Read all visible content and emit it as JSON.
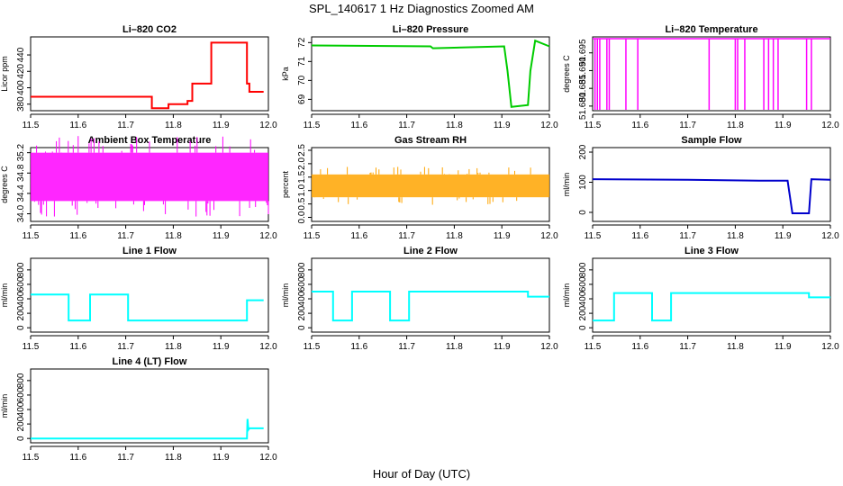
{
  "figure": {
    "title": "SPL_140617  1 Hz Diagnostics Zoomed AM",
    "xlabel": "Hour of Day (UTC)"
  },
  "chart_data": [
    {
      "type": "line",
      "title": "Li–820 CO2",
      "ylabel": "Licor ppm",
      "color": "#ff0000",
      "xlim": [
        11.5,
        12.0
      ],
      "ylim": [
        372,
        462
      ],
      "yticks": [
        380,
        400,
        420,
        440
      ],
      "xticks": [
        11.5,
        11.6,
        11.7,
        11.8,
        11.9,
        12.0
      ],
      "x": [
        11.5,
        11.755,
        11.755,
        11.79,
        11.79,
        11.83,
        11.83,
        11.84,
        11.84,
        11.88,
        11.88,
        11.955,
        11.955,
        11.96,
        11.96,
        11.99
      ],
      "y": [
        389,
        389,
        375,
        375,
        380,
        380,
        384,
        384,
        405,
        405,
        455,
        455,
        405,
        405,
        395,
        395
      ]
    },
    {
      "type": "line",
      "title": "Li–820 Pressure",
      "ylabel": "kPa",
      "color": "#00cc00",
      "xlim": [
        11.5,
        12.0
      ],
      "ylim": [
        68.4,
        72.3
      ],
      "yticks": [
        69,
        70,
        71,
        72
      ],
      "xticks": [
        11.5,
        11.6,
        11.7,
        11.8,
        11.9,
        12.0
      ],
      "x": [
        11.5,
        11.75,
        11.755,
        11.905,
        11.912,
        11.92,
        11.955,
        11.96,
        11.97,
        12.0
      ],
      "y": [
        71.85,
        71.8,
        71.7,
        71.8,
        70.5,
        68.6,
        68.7,
        70.5,
        72.1,
        71.8
      ]
    },
    {
      "type": "line",
      "title": "Li–820 Temperature",
      "ylabel": "degrees C",
      "color": "#ff00ff",
      "xlim": [
        11.5,
        12.0
      ],
      "ylim": [
        51.6787,
        51.6995
      ],
      "yticks": [
        51.68,
        51.685,
        51.69,
        51.695
      ],
      "xticks": [
        11.5,
        11.6,
        11.7,
        11.8,
        11.9,
        12.0
      ],
      "baseline": 51.699,
      "dips": [
        11.505,
        11.51,
        11.515,
        11.53,
        11.535,
        11.57,
        11.595,
        11.745,
        11.8,
        11.805,
        11.82,
        11.86,
        11.87,
        11.88,
        11.89,
        11.95,
        11.96
      ]
    },
    {
      "type": "line",
      "title": "Ambient Box Temperature",
      "ylabel": "degrees C",
      "color": "#ff00ff",
      "xlim": [
        11.5,
        12.0
      ],
      "ylim": [
        33.85,
        35.3
      ],
      "yticks": [
        34.0,
        34.4,
        34.8,
        35.2
      ],
      "xticks": [
        11.5,
        11.6,
        11.7,
        11.8,
        11.9,
        12.0
      ],
      "band": [
        34.25,
        35.2
      ]
    },
    {
      "type": "scatter",
      "title": "Gas Stream RH",
      "ylabel": "percent",
      "color": "#ffa500",
      "xlim": [
        11.5,
        12.0
      ],
      "ylim": [
        -0.15,
        2.6
      ],
      "yticks": [
        0.0,
        0.5,
        1.0,
        1.5,
        2.0,
        2.5
      ],
      "xticks": [
        11.5,
        11.6,
        11.7,
        11.8,
        11.9,
        12.0
      ],
      "band": [
        0.75,
        1.6
      ]
    },
    {
      "type": "line",
      "title": "Sample Flow",
      "ylabel": "ml/min",
      "color": "#0000cc",
      "xlim": [
        11.5,
        12.0
      ],
      "ylim": [
        -30,
        215
      ],
      "yticks": [
        0,
        100,
        200
      ],
      "xticks": [
        11.5,
        11.6,
        11.7,
        11.8,
        11.9,
        12.0
      ],
      "x": [
        11.5,
        11.7,
        11.85,
        11.91,
        11.92,
        11.955,
        11.96,
        12.0
      ],
      "y": [
        110,
        108,
        105,
        105,
        -3,
        -3,
        110,
        108
      ]
    },
    {
      "type": "line",
      "title": "Line 1 Flow",
      "ylabel": "ml/min",
      "color": "#00ffff",
      "xlim": [
        11.5,
        12.0
      ],
      "ylim": [
        -60,
        960
      ],
      "yticks": [
        0,
        200,
        400,
        600,
        800
      ],
      "xticks": [
        11.5,
        11.6,
        11.7,
        11.8,
        11.9,
        12.0
      ],
      "x": [
        11.5,
        11.58,
        11.58,
        11.625,
        11.625,
        11.705,
        11.705,
        11.955,
        11.955,
        11.99
      ],
      "y": [
        460,
        460,
        100,
        100,
        460,
        460,
        100,
        100,
        380,
        380
      ]
    },
    {
      "type": "line",
      "title": "Line 2 Flow",
      "ylabel": "ml/min",
      "color": "#00ffff",
      "xlim": [
        11.5,
        12.0
      ],
      "ylim": [
        -60,
        960
      ],
      "yticks": [
        0,
        200,
        400,
        600,
        800
      ],
      "xticks": [
        11.5,
        11.6,
        11.7,
        11.8,
        11.9,
        12.0
      ],
      "x": [
        11.5,
        11.545,
        11.545,
        11.585,
        11.585,
        11.665,
        11.665,
        11.705,
        11.705,
        11.955,
        11.955,
        12.0
      ],
      "y": [
        500,
        500,
        100,
        100,
        500,
        500,
        100,
        100,
        500,
        500,
        430,
        430
      ]
    },
    {
      "type": "line",
      "title": "Line 3 Flow",
      "ylabel": "ml/min",
      "color": "#00ffff",
      "xlim": [
        11.5,
        12.0
      ],
      "ylim": [
        -60,
        960
      ],
      "yticks": [
        0,
        200,
        400,
        600,
        800
      ],
      "xticks": [
        11.5,
        11.6,
        11.7,
        11.8,
        11.9,
        12.0
      ],
      "x": [
        11.5,
        11.545,
        11.545,
        11.625,
        11.625,
        11.665,
        11.665,
        11.955,
        11.955,
        12.0
      ],
      "y": [
        100,
        100,
        480,
        480,
        100,
        100,
        480,
        480,
        420,
        420
      ]
    },
    {
      "type": "line",
      "title": "Line 4 (LT) Flow",
      "ylabel": "ml/min",
      "color": "#00ffff",
      "xlim": [
        11.5,
        12.0
      ],
      "ylim": [
        -60,
        960
      ],
      "yticks": [
        0,
        200,
        400,
        600,
        800
      ],
      "xticks": [
        11.5,
        11.6,
        11.7,
        11.8,
        11.9,
        12.0
      ],
      "x": [
        11.5,
        11.955,
        11.956,
        11.958,
        11.96,
        11.99
      ],
      "y": [
        0,
        0,
        270,
        120,
        140,
        140
      ]
    }
  ]
}
